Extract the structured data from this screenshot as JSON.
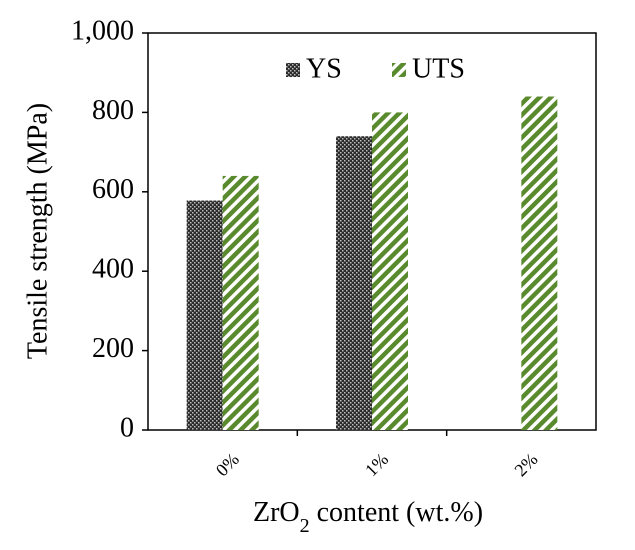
{
  "chart_data": {
    "type": "bar",
    "categories": [
      "0%",
      "1%",
      "2%"
    ],
    "series": [
      {
        "name": "YS",
        "values": [
          578,
          740,
          null
        ],
        "pattern": "crosshatch",
        "color": "#1a1a1a"
      },
      {
        "name": "UTS",
        "values": [
          640,
          800,
          840
        ],
        "pattern": "diagonal-stripes",
        "color": "#5a8a2e"
      }
    ],
    "xlabel": "ZrO2 content (wt.%)",
    "xlabel_main": "ZrO",
    "xlabel_sub": "2",
    "xlabel_rest": " content (wt.%)",
    "ylabel": "Tensile strength (MPa)",
    "ylim": [
      0,
      1000
    ],
    "yticks": [
      0,
      200,
      400,
      600,
      800,
      1000
    ],
    "ytick_labels": [
      "0",
      "200",
      "400",
      "600",
      "800",
      "1,000"
    ],
    "grid": false,
    "legend_position": "top"
  }
}
